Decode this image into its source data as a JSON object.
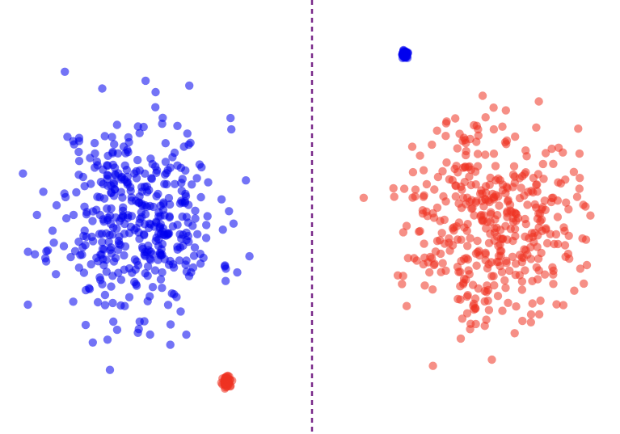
{
  "colors": {
    "blue": "#0000ee",
    "red": "#ee3322",
    "divider": "#7a2a8a",
    "background": "#ffffff"
  },
  "chart_data": [
    {
      "type": "scatter",
      "panel": "left",
      "grid": false,
      "axes_visible": false,
      "xlim": [
        0,
        10
      ],
      "ylim": [
        0,
        10
      ],
      "series": [
        {
          "color_key": "blue",
          "distribution": "gaussian",
          "count": 420,
          "center": [
            4.4,
            5.0
          ],
          "spread": [
            1.3,
            1.2
          ],
          "seed": 11,
          "outliers": [
            [
              5.0,
              8.0
            ],
            [
              0.9,
              4.2
            ],
            [
              7.9,
              5.9
            ]
          ]
        },
        {
          "color_key": "red",
          "distribution": "gaussian",
          "count": 45,
          "center": [
            7.3,
            1.1
          ],
          "spread": [
            0.07,
            0.06
          ],
          "seed": 23,
          "outliers": []
        }
      ]
    },
    {
      "type": "scatter",
      "panel": "right",
      "grid": false,
      "axes_visible": false,
      "xlim": [
        0,
        10
      ],
      "ylim": [
        0,
        10
      ],
      "series": [
        {
          "color_key": "red",
          "distribution": "gaussian",
          "count": 420,
          "center": [
            5.8,
            5.0
          ],
          "spread": [
            1.35,
            1.2
          ],
          "seed": 37,
          "outliers": [
            [
              5.6,
              7.4
            ],
            [
              3.2,
              6.7
            ],
            [
              8.7,
              3.8
            ],
            [
              6.6,
              2.9
            ]
          ]
        },
        {
          "color_key": "blue",
          "distribution": "gaussian",
          "count": 35,
          "center": [
            2.95,
            8.9
          ],
          "spread": [
            0.06,
            0.06
          ],
          "seed": 51,
          "outliers": []
        }
      ]
    }
  ]
}
